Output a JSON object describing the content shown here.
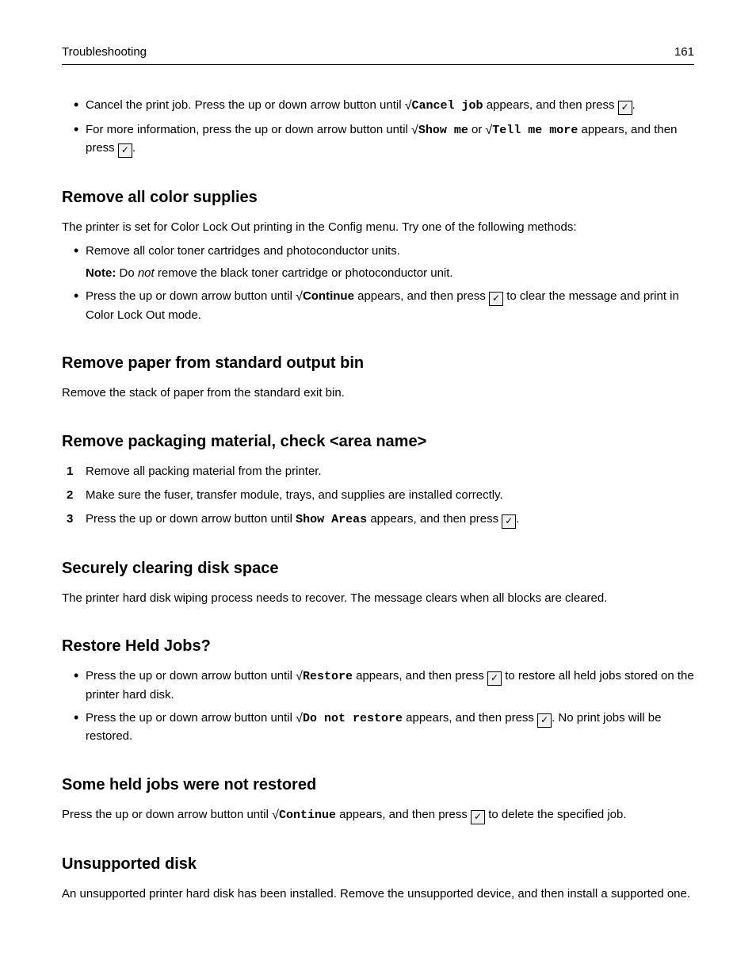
{
  "header": {
    "section": "Troubleshooting",
    "page_number": "161"
  },
  "bullets_top": {
    "b1": {
      "t1": "Cancel the print job. Press the up or down arrow button until ",
      "cmd": "Cancel job",
      "t2": " appears, and then press ",
      "t3": "."
    },
    "b2": {
      "t1": "For more information, press the up or down arrow button until ",
      "cmd1": "Show me",
      "or": " or ",
      "cmd2": "Tell me more",
      "t2": " appears, and then press ",
      "t3": "."
    }
  },
  "sec_color": {
    "heading": "Remove all color supplies",
    "intro": "The printer is set for Color Lock Out printing in the Config menu. Try one of the following methods:",
    "b1": "Remove all color toner cartridges and photoconductor units.",
    "note_label": "Note:",
    "note_t1": " Do ",
    "note_em": "not",
    "note_t2": " remove the black toner cartridge or photoconductor unit.",
    "b2_t1": "Press the up or down arrow button until ",
    "b2_cmd": "Continue",
    "b2_t2": " appears, and then press ",
    "b2_t3": " to clear the message and print in Color Lock Out mode."
  },
  "sec_output_bin": {
    "heading": "Remove paper from standard output bin",
    "body": "Remove the stack of paper from the standard exit bin."
  },
  "sec_packaging": {
    "heading": "Remove packaging material, check <area name>",
    "s1": "Remove all packing material from the printer.",
    "s2": "Make sure the fuser, transfer module, trays, and supplies are installed correctly.",
    "s3_t1": "Press the up or down arrow button until ",
    "s3_cmd": "Show Areas",
    "s3_t2": " appears, and then press ",
    "s3_t3": "."
  },
  "sec_disk": {
    "heading": "Securely clearing disk space",
    "body": "The printer hard disk wiping process needs to recover. The message clears when all blocks are cleared."
  },
  "sec_restore": {
    "heading": "Restore Held Jobs?",
    "b1_t1": "Press the up or down arrow button until ",
    "b1_cmd": "Restore",
    "b1_t2": " appears, and then press ",
    "b1_t3": " to restore all held jobs stored on the printer hard disk.",
    "b2_t1": "Press the up or down arrow button until ",
    "b2_cmd": "Do not restore",
    "b2_t2": " appears, and then press ",
    "b2_t3": ". No print jobs will be restored."
  },
  "sec_not_restored": {
    "heading": "Some held jobs were not restored",
    "t1": "Press the up or down arrow button until ",
    "cmd": "Continue",
    "t2": " appears, and then press ",
    "t3": " to delete the specified job."
  },
  "sec_unsupported": {
    "heading": "Unsupported disk",
    "body": "An unsupported printer hard disk has been installed. Remove the unsupported device, and then install a supported one."
  }
}
